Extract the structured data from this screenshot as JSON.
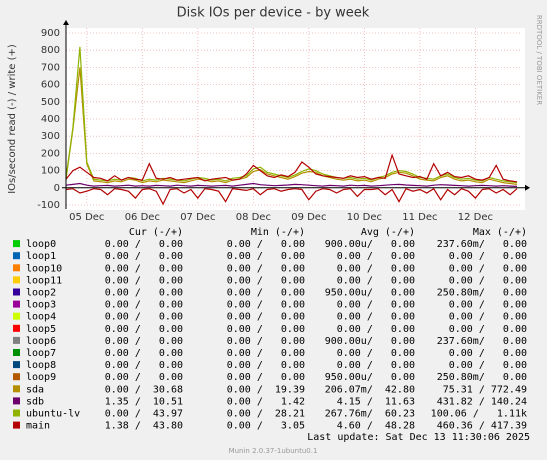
{
  "chart_data": {
    "type": "line",
    "title": "Disk IOs per device - by week",
    "y_label": "IOs/second read (-) / write (+)",
    "side_label": "RRDTOOL / TOBI OETIKER",
    "categories": [
      null,
      null,
      null,
      "05 Dec",
      null,
      null,
      null,
      null,
      null,
      null,
      null,
      "06 Dec",
      null,
      null,
      null,
      null,
      null,
      null,
      null,
      "07 Dec",
      null,
      null,
      null,
      null,
      null,
      null,
      null,
      "08 Dec",
      null,
      null,
      null,
      null,
      null,
      null,
      null,
      "09 Dec",
      null,
      null,
      null,
      null,
      null,
      null,
      null,
      "10 Dec",
      null,
      null,
      null,
      null,
      null,
      null,
      null,
      "11 Dec",
      null,
      null,
      null,
      null,
      null,
      null,
      null,
      "12 Dec",
      null,
      null,
      null,
      null,
      null,
      null
    ],
    "ylim": [
      -100,
      900
    ],
    "yticks": [
      -100,
      0,
      100,
      200,
      300,
      400,
      500,
      600,
      700,
      800,
      900
    ],
    "grid": true,
    "series": [
      {
        "name": "sda",
        "color": "#b38f00",
        "values": [
          50,
          340,
          700,
          140,
          40,
          35,
          30,
          40,
          35,
          50,
          45,
          30,
          40,
          35,
          45,
          40,
          35,
          30,
          40,
          50,
          45,
          35,
          40,
          30,
          45,
          50,
          60,
          95,
          105,
          80,
          70,
          60,
          50,
          65,
          85,
          95,
          90,
          70,
          60,
          50,
          45,
          50,
          40,
          45,
          35,
          50,
          60,
          80,
          90,
          85,
          70,
          50,
          45,
          40,
          60,
          70,
          50,
          40,
          45,
          35,
          30,
          50,
          40,
          30,
          25,
          20
        ]
      },
      {
        "name": "sdb",
        "color": "#6b006b",
        "values": [
          15,
          20,
          25,
          15,
          10,
          12,
          14,
          10,
          12,
          15,
          10,
          12,
          10,
          14,
          12,
          10,
          15,
          12,
          10,
          14,
          12,
          10,
          12,
          14,
          10,
          15,
          20,
          25,
          18,
          15,
          12,
          14,
          16,
          20,
          18,
          15,
          12,
          10,
          14,
          12,
          10,
          15,
          12,
          14,
          10,
          12,
          15,
          18,
          20,
          16,
          14,
          12,
          10,
          15,
          18,
          16,
          14,
          12,
          10,
          12,
          14,
          12,
          10,
          12,
          10,
          8
        ]
      },
      {
        "name": "ubuntu-lv",
        "color": "#8fb300",
        "values": [
          60,
          350,
          820,
          150,
          50,
          45,
          40,
          50,
          45,
          60,
          55,
          40,
          50,
          45,
          55,
          50,
          45,
          40,
          50,
          60,
          55,
          45,
          50,
          40,
          55,
          60,
          70,
          110,
          120,
          90,
          80,
          70,
          60,
          75,
          95,
          110,
          100,
          80,
          70,
          60,
          55,
          60,
          50,
          55,
          45,
          60,
          70,
          90,
          100,
          95,
          80,
          60,
          55,
          50,
          70,
          80,
          60,
          50,
          55,
          45,
          40,
          60,
          50,
          40,
          35,
          30
        ]
      },
      {
        "name": "main",
        "color": "#b30000",
        "values": [
          50,
          100,
          120,
          90,
          60,
          55,
          40,
          70,
          45,
          60,
          50,
          45,
          140,
          55,
          50,
          60,
          45,
          50,
          55,
          60,
          40,
          50,
          55,
          60,
          45,
          50,
          80,
          130,
          100,
          70,
          60,
          75,
          65,
          90,
          150,
          120,
          80,
          70,
          65,
          60,
          55,
          70,
          60,
          65,
          50,
          60,
          55,
          190,
          80,
          70,
          60,
          65,
          50,
          140,
          70,
          90,
          65,
          60,
          70,
          50,
          45,
          60,
          130,
          50,
          40,
          35
        ],
        "read_values": [
          -10,
          -5,
          -30,
          -20,
          -5,
          -10,
          -40,
          -5,
          -10,
          -20,
          -60,
          -10,
          -5,
          -20,
          -95,
          -10,
          -5,
          -30,
          -10,
          -60,
          -5,
          -10,
          -20,
          -80,
          -5,
          -10,
          -15,
          -5,
          -40,
          -10,
          -5,
          -20,
          -10,
          -5,
          -10,
          -70,
          -20,
          -5,
          -10,
          -30,
          -10,
          -5,
          -50,
          -10,
          -10,
          -5,
          -40,
          -10,
          -80,
          -5,
          -20,
          -10,
          -30,
          -5,
          -70,
          -10,
          -40,
          -5,
          -20,
          -60,
          -10,
          -5,
          -30,
          -10,
          -40,
          -5
        ]
      }
    ],
    "legend_table": {
      "columns": [
        "Cur (-/+)",
        "Min (-/+)",
        "Avg (-/+)",
        "Max (-/+)"
      ],
      "rows": [
        {
          "name": "loop0",
          "color": "#00cc00",
          "cur": "0.00 /   0.00",
          "min": "0.00 /   0.00",
          "avg": "900.00u/   0.00",
          "max": "237.60m/   0.00"
        },
        {
          "name": "loop1",
          "color": "#0066b3",
          "cur": "0.00 /   0.00",
          "min": "0.00 /   0.00",
          "avg": "0.00 /   0.00",
          "max": "0.00 /   0.00"
        },
        {
          "name": "loop10",
          "color": "#ff8000",
          "cur": "0.00 /   0.00",
          "min": "0.00 /   0.00",
          "avg": "0.00 /   0.00",
          "max": "0.00 /   0.00"
        },
        {
          "name": "loop11",
          "color": "#ffcc00",
          "cur": "0.00 /   0.00",
          "min": "0.00 /   0.00",
          "avg": "0.00 /   0.00",
          "max": "0.00 /   0.00"
        },
        {
          "name": "loop2",
          "color": "#330099",
          "cur": "0.00 /   0.00",
          "min": "0.00 /   0.00",
          "avg": "950.00u/   0.00",
          "max": "250.80m/   0.00"
        },
        {
          "name": "loop3",
          "color": "#990099",
          "cur": "0.00 /   0.00",
          "min": "0.00 /   0.00",
          "avg": "0.00 /   0.00",
          "max": "0.00 /   0.00"
        },
        {
          "name": "loop4",
          "color": "#ccff00",
          "cur": "0.00 /   0.00",
          "min": "0.00 /   0.00",
          "avg": "0.00 /   0.00",
          "max": "0.00 /   0.00"
        },
        {
          "name": "loop5",
          "color": "#ff0000",
          "cur": "0.00 /   0.00",
          "min": "0.00 /   0.00",
          "avg": "0.00 /   0.00",
          "max": "0.00 /   0.00"
        },
        {
          "name": "loop6",
          "color": "#808080",
          "cur": "0.00 /   0.00",
          "min": "0.00 /   0.00",
          "avg": "900.00u/   0.00",
          "max": "237.60m/   0.00"
        },
        {
          "name": "loop7",
          "color": "#008f00",
          "cur": "0.00 /   0.00",
          "min": "0.00 /   0.00",
          "avg": "0.00 /   0.00",
          "max": "0.00 /   0.00"
        },
        {
          "name": "loop8",
          "color": "#00487d",
          "cur": "0.00 /   0.00",
          "min": "0.00 /   0.00",
          "avg": "0.00 /   0.00",
          "max": "0.00 /   0.00"
        },
        {
          "name": "loop9",
          "color": "#b35a00",
          "cur": "0.00 /   0.00",
          "min": "0.00 /   0.00",
          "avg": "950.00u/   0.00",
          "max": "250.80m/   0.00"
        },
        {
          "name": "sda",
          "color": "#b38f00",
          "cur": "0.00 /  30.68",
          "min": "0.00 /  19.39",
          "avg": "206.07m/  42.80",
          "max": "75.31 / 772.49"
        },
        {
          "name": "sdb",
          "color": "#6b006b",
          "cur": "1.35 /  10.51",
          "min": "0.00 /   1.42",
          "avg": "4.15 /  11.63",
          "max": "431.82 / 140.24"
        },
        {
          "name": "ubuntu-lv",
          "color": "#8fb300",
          "cur": "0.00 /  43.97",
          "min": "0.00 /  28.21",
          "avg": "267.76m/  60.23",
          "max": "100.06 /   1.11k"
        },
        {
          "name": "main",
          "color": "#b30000",
          "cur": "1.38 /  43.80",
          "min": "0.00 /   3.05",
          "avg": "4.60 /  48.28",
          "max": "460.36 / 417.39"
        }
      ]
    },
    "last_update": "Last update: Sat Dec 13 11:30:06 2025",
    "footer": "Munin 2.0.37-1ubuntu0.1"
  }
}
